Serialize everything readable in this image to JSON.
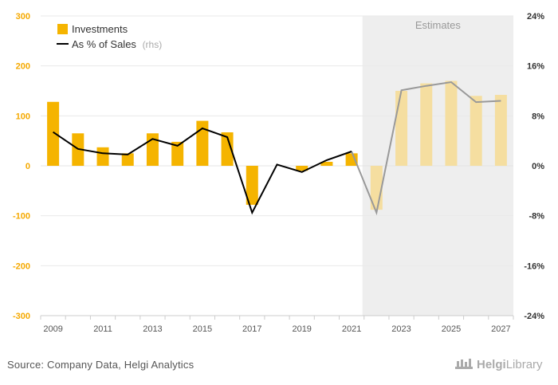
{
  "chart_data": {
    "type": "bar",
    "categories": [
      "2009",
      "2010",
      "2011",
      "2012",
      "2013",
      "2014",
      "2015",
      "2016",
      "2017",
      "2018",
      "2019",
      "2020",
      "2021",
      "2022",
      "2023",
      "2024",
      "2025",
      "2026",
      "2027"
    ],
    "x_tick_labels": [
      "2009",
      "2011",
      "2013",
      "2015",
      "2017",
      "2019",
      "2021",
      "2023",
      "2025",
      "2027"
    ],
    "series": [
      {
        "name": "Investments",
        "type": "bar",
        "axis": "left",
        "values": [
          128,
          65,
          37,
          25,
          65,
          48,
          90,
          67,
          -78,
          0,
          -10,
          8,
          25,
          -88,
          150,
          165,
          170,
          140,
          142
        ]
      },
      {
        "name": "As % of Sales",
        "type": "line",
        "axis": "right",
        "values": [
          5.4,
          2.7,
          2.0,
          1.8,
          4.3,
          3.2,
          6.0,
          4.6,
          -7.5,
          0.2,
          -1.0,
          0.9,
          2.3,
          -7.5,
          12.1,
          12.8,
          13.4,
          10.2,
          10.4
        ]
      }
    ],
    "ylim": [
      -300,
      300
    ],
    "yticks": [
      300,
      200,
      100,
      0,
      -100,
      -200,
      -300
    ],
    "y2lim": [
      -24,
      24
    ],
    "y2ticks": [
      "24%",
      "16%",
      "8%",
      "0%",
      "-8%",
      "-16%",
      "-24%"
    ],
    "estimate_region_start": "2022",
    "estimate_label": "Estimates",
    "legend": {
      "position": "top-left",
      "items": [
        {
          "label": "Investments",
          "suffix": ""
        },
        {
          "label": "As % of Sales",
          "suffix": "(rhs)"
        }
      ]
    },
    "grid": true
  },
  "colors": {
    "bar": "#f5b400",
    "bar_estimate": "#f5dea0",
    "line": "#000000",
    "line_estimate": "#999999",
    "estimate_bg": "#eeeeee"
  },
  "footer": {
    "source": "Source: Company Data, Helgi Analytics",
    "logo_brand": "Helgi",
    "logo_suffix": "Library"
  }
}
